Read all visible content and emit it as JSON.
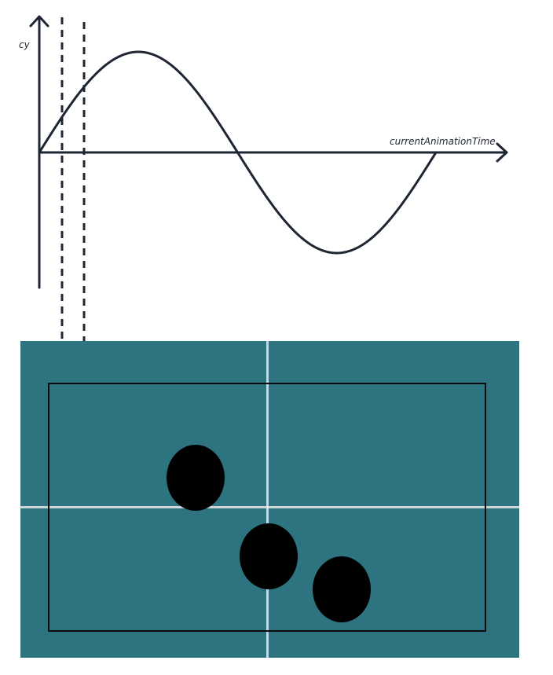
{
  "graph": {
    "y_axis_label": "cy",
    "x_axis_label": "currentAnimationTime",
    "curve": "sine",
    "cycles": 1,
    "dashed_markers": 2,
    "line_color": "#1f2633"
  },
  "scene": {
    "background_color": "#2e7480",
    "frame_color": "#0a0a0a",
    "guide_line_color": "#e8e8e8",
    "ball_color": "#000000",
    "ball_count": 3
  }
}
